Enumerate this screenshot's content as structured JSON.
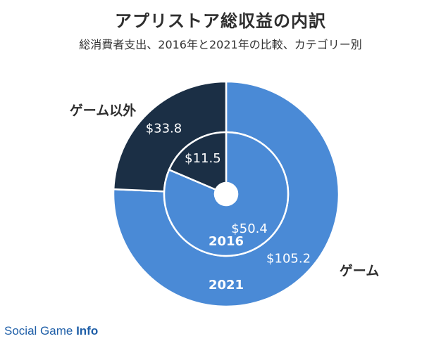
{
  "title": "アプリストア総収益の内訳",
  "subtitle": "総消費者支出、2016年と2021年の比較、カテゴリー別",
  "footer": {
    "brand": "Social Game",
    "suffix": "Info"
  },
  "colors": {
    "game": "#4a8ad6",
    "non_game": "#1b2f45",
    "divider": "#ffffff"
  },
  "chart_data": {
    "type": "pie",
    "variant": "nested-donut",
    "categories": [
      "ゲーム",
      "ゲーム以外"
    ],
    "series": [
      {
        "name": "2016",
        "values": [
          50.4,
          11.5
        ],
        "labels": [
          "$50.4",
          "$11.5"
        ]
      },
      {
        "name": "2021",
        "values": [
          105.2,
          33.8
        ],
        "labels": [
          "$105.2",
          "$33.8"
        ]
      }
    ],
    "legend": "direct-labels"
  }
}
